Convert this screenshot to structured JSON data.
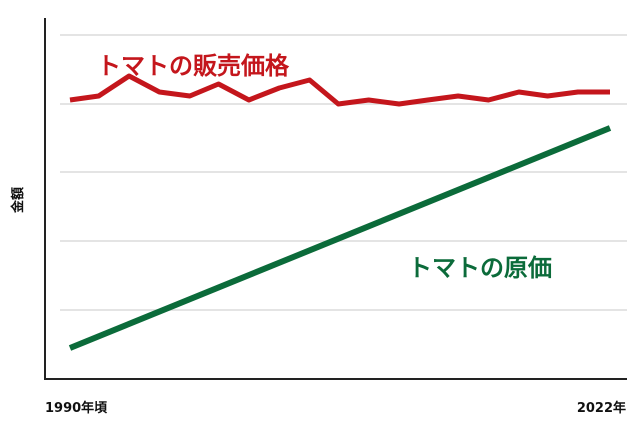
{
  "chart_data": {
    "type": "line",
    "ylabel": "金額",
    "xlabel": "",
    "x_tick_labels": [
      "1990年頃",
      "2022年"
    ],
    "xlim": [
      1990,
      2022
    ],
    "ylim": [
      0,
      100
    ],
    "grid": true,
    "y_ticks_visible": false,
    "series": [
      {
        "name": "トマトの販売価格",
        "color": "#c4161c",
        "x": [
          1990,
          1991.7,
          1993.5,
          1995.3,
          1997.1,
          1998.8,
          2000.6,
          2002.4,
          2004.2,
          2005.9,
          2007.7,
          2009.5,
          2011.2,
          2013,
          2014.8,
          2016.6,
          2018.3,
          2020.1,
          2022
        ],
        "values": [
          75,
          76,
          81,
          77,
          76,
          79,
          75,
          78,
          80,
          74,
          75,
          74,
          75,
          76,
          75,
          77,
          76,
          77,
          77
        ]
      },
      {
        "name": "トマトの原価",
        "color": "#0b6b3a",
        "x": [
          1990,
          2022
        ],
        "values": [
          13,
          68
        ]
      }
    ]
  }
}
